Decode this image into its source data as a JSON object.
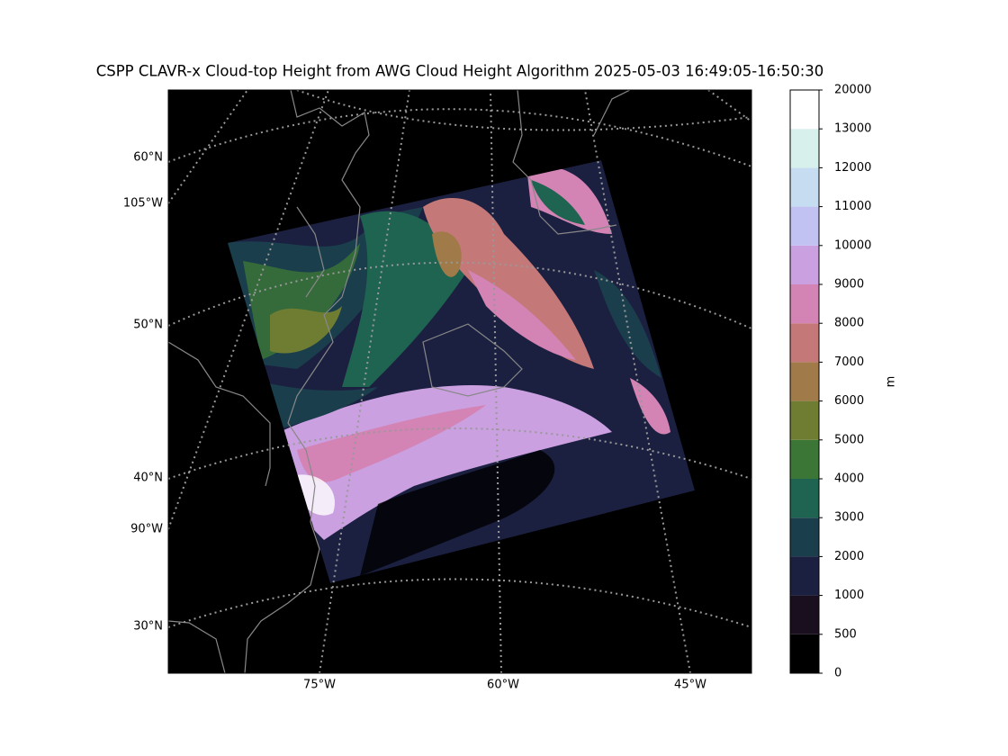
{
  "title": "CSPP CLAVR-x Cloud-top Height from AWG Cloud Height Algorithm 2025-05-03 16:49:05-16:50:30",
  "map": {
    "lat_labels": [
      "60°N",
      "105°W",
      "50°N",
      "40°N",
      "90°W",
      "30°N"
    ],
    "lon_labels": [
      "75°W",
      "60°W",
      "45°W"
    ]
  },
  "colorbar": {
    "label": "m",
    "ticks": [
      0,
      500,
      1000,
      2000,
      3000,
      4000,
      5000,
      6000,
      7000,
      8000,
      9000,
      10000,
      11000,
      12000,
      13000,
      20000
    ],
    "colors": [
      "#000000",
      "#1a0f1e",
      "#1c2040",
      "#1a3e4c",
      "#1e6450",
      "#3c7636",
      "#6e7d32",
      "#a07a48",
      "#c47878",
      "#d383b4",
      "#cba0e0",
      "#c2c2f2",
      "#c6dcf0",
      "#d8f0ec",
      "#ffffff"
    ]
  }
}
